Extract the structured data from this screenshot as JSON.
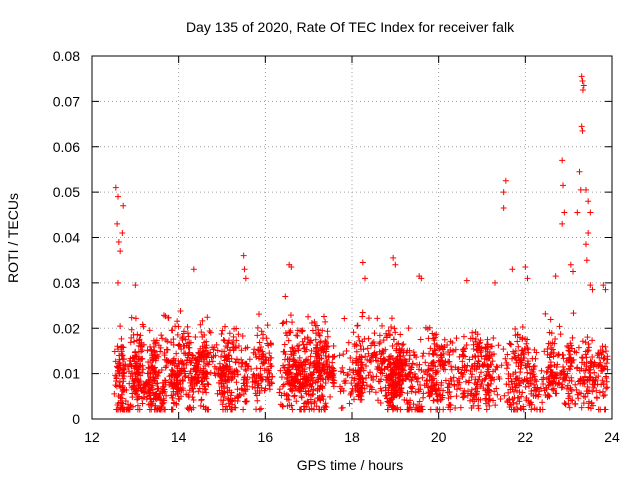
{
  "chart_data": {
    "type": "scatter",
    "title": "Day 135 of 2020, Rate Of TEC Index for receiver falk",
    "xlabel": "GPS time / hours",
    "ylabel": "ROTI / TECUs",
    "xlim": [
      12,
      24
    ],
    "ylim": [
      0,
      0.08
    ],
    "x_ticks": [
      "12",
      "14",
      "16",
      "18",
      "20",
      "22",
      "24"
    ],
    "y_ticks": [
      "0",
      "0.01",
      "0.02",
      "0.03",
      "0.04",
      "0.05",
      "0.06",
      "0.07",
      "0.08"
    ],
    "grid": true,
    "marker": "+",
    "series": [
      {
        "name": "ROTI",
        "color": "#ff0000",
        "notable_points": [
          [
            12.55,
            0.051
          ],
          [
            12.6,
            0.049
          ],
          [
            12.58,
            0.043
          ],
          [
            12.62,
            0.039
          ],
          [
            12.65,
            0.037
          ],
          [
            12.72,
            0.047
          ],
          [
            12.7,
            0.041
          ],
          [
            12.6,
            0.03
          ],
          [
            13.0,
            0.0295
          ],
          [
            14.35,
            0.033
          ],
          [
            15.5,
            0.036
          ],
          [
            15.52,
            0.033
          ],
          [
            15.55,
            0.031
          ],
          [
            16.55,
            0.034
          ],
          [
            16.6,
            0.0335
          ],
          [
            18.25,
            0.0345
          ],
          [
            18.3,
            0.031
          ],
          [
            18.95,
            0.0355
          ],
          [
            19.0,
            0.034
          ],
          [
            19.55,
            0.0315
          ],
          [
            19.6,
            0.031
          ],
          [
            20.65,
            0.0305
          ],
          [
            21.3,
            0.03
          ],
          [
            21.55,
            0.0525
          ],
          [
            21.5,
            0.05
          ],
          [
            21.5,
            0.0465
          ],
          [
            21.7,
            0.033
          ],
          [
            22.0,
            0.0335
          ],
          [
            22.05,
            0.031
          ],
          [
            22.7,
            0.0315
          ],
          [
            22.85,
            0.057
          ],
          [
            22.87,
            0.0515
          ],
          [
            22.9,
            0.0455
          ],
          [
            22.85,
            0.043
          ],
          [
            23.05,
            0.034
          ],
          [
            23.1,
            0.0325
          ],
          [
            23.2,
            0.0455
          ],
          [
            23.25,
            0.0545
          ],
          [
            23.28,
            0.0505
          ],
          [
            23.3,
            0.0645
          ],
          [
            23.32,
            0.0635
          ],
          [
            23.3,
            0.0755
          ],
          [
            23.32,
            0.0745
          ],
          [
            23.35,
            0.0735
          ],
          [
            23.33,
            0.0725
          ],
          [
            23.4,
            0.0505
          ],
          [
            23.45,
            0.048
          ],
          [
            23.5,
            0.0455
          ],
          [
            23.45,
            0.041
          ],
          [
            23.4,
            0.0385
          ],
          [
            23.42,
            0.035
          ],
          [
            23.5,
            0.0295
          ],
          [
            23.55,
            0.0285
          ],
          [
            23.8,
            0.0295
          ],
          [
            23.85,
            0.0285
          ],
          [
            23.3,
            0.0025
          ],
          [
            23.35,
            0.0035
          ]
        ],
        "bulk": {
          "x_range": [
            12.5,
            23.9
          ],
          "typical_y_range": [
            0.003,
            0.025
          ],
          "median_y": 0.01
        }
      }
    ]
  }
}
